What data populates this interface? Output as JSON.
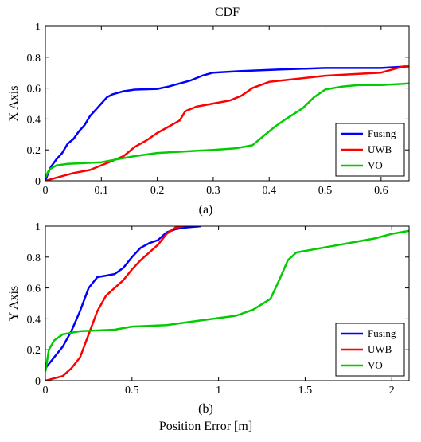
{
  "chart_data": [
    {
      "type": "line",
      "title": "CDF",
      "caption": "(a)",
      "xlabel": "",
      "ylabel": "X Axis",
      "xlim": [
        0,
        0.65
      ],
      "ylim": [
        0,
        1
      ],
      "xticks": [
        "0",
        "0.1",
        "0.2",
        "0.3",
        "0.4",
        "0.5",
        "0.6"
      ],
      "xtick_values": [
        0,
        0.1,
        0.2,
        0.3,
        0.4,
        0.5,
        0.6
      ],
      "yticks": [
        "0",
        "0.2",
        "0.4",
        "0.6",
        "0.8",
        "1"
      ],
      "ytick_values": [
        0,
        0.2,
        0.4,
        0.6,
        0.8,
        1
      ],
      "legend_position": "lower-right",
      "series": [
        {
          "name": "Fusing",
          "color": "#0000ff",
          "points": [
            [
              0,
              0
            ],
            [
              0.005,
              0.05
            ],
            [
              0.01,
              0.09
            ],
            [
              0.02,
              0.14
            ],
            [
              0.03,
              0.18
            ],
            [
              0.04,
              0.24
            ],
            [
              0.05,
              0.27
            ],
            [
              0.06,
              0.32
            ],
            [
              0.07,
              0.36
            ],
            [
              0.08,
              0.42
            ],
            [
              0.09,
              0.46
            ],
            [
              0.1,
              0.5
            ],
            [
              0.11,
              0.54
            ],
            [
              0.12,
              0.56
            ],
            [
              0.13,
              0.57
            ],
            [
              0.14,
              0.58
            ],
            [
              0.16,
              0.59
            ],
            [
              0.2,
              0.595
            ],
            [
              0.22,
              0.61
            ],
            [
              0.24,
              0.63
            ],
            [
              0.26,
              0.65
            ],
            [
              0.28,
              0.68
            ],
            [
              0.3,
              0.7
            ],
            [
              0.35,
              0.71
            ],
            [
              0.42,
              0.72
            ],
            [
              0.5,
              0.73
            ],
            [
              0.6,
              0.73
            ],
            [
              0.65,
              0.74
            ]
          ]
        },
        {
          "name": "UWB",
          "color": "#ff0000",
          "points": [
            [
              0,
              0
            ],
            [
              0.02,
              0.02
            ],
            [
              0.05,
              0.05
            ],
            [
              0.08,
              0.07
            ],
            [
              0.1,
              0.1
            ],
            [
              0.12,
              0.13
            ],
            [
              0.14,
              0.16
            ],
            [
              0.16,
              0.22
            ],
            [
              0.18,
              0.26
            ],
            [
              0.2,
              0.31
            ],
            [
              0.22,
              0.35
            ],
            [
              0.24,
              0.39
            ],
            [
              0.25,
              0.45
            ],
            [
              0.27,
              0.48
            ],
            [
              0.3,
              0.5
            ],
            [
              0.33,
              0.52
            ],
            [
              0.35,
              0.55
            ],
            [
              0.37,
              0.6
            ],
            [
              0.4,
              0.64
            ],
            [
              0.45,
              0.66
            ],
            [
              0.5,
              0.68
            ],
            [
              0.55,
              0.69
            ],
            [
              0.6,
              0.7
            ],
            [
              0.64,
              0.74
            ],
            [
              0.65,
              0.74
            ]
          ]
        },
        {
          "name": "VO",
          "color": "#00cc00",
          "points": [
            [
              0,
              0.02
            ],
            [
              0.005,
              0.06
            ],
            [
              0.01,
              0.08
            ],
            [
              0.02,
              0.1
            ],
            [
              0.04,
              0.11
            ],
            [
              0.1,
              0.12
            ],
            [
              0.13,
              0.14
            ],
            [
              0.16,
              0.16
            ],
            [
              0.2,
              0.18
            ],
            [
              0.25,
              0.19
            ],
            [
              0.3,
              0.2
            ],
            [
              0.34,
              0.21
            ],
            [
              0.37,
              0.23
            ],
            [
              0.39,
              0.29
            ],
            [
              0.41,
              0.35
            ],
            [
              0.43,
              0.4
            ],
            [
              0.46,
              0.47
            ],
            [
              0.48,
              0.54
            ],
            [
              0.5,
              0.59
            ],
            [
              0.53,
              0.61
            ],
            [
              0.56,
              0.62
            ],
            [
              0.6,
              0.62
            ],
            [
              0.65,
              0.63
            ]
          ]
        }
      ]
    },
    {
      "type": "line",
      "title": "",
      "caption": "(b)",
      "xlabel": "Position Error [m]",
      "ylabel": "Y Axis",
      "xlim": [
        0,
        2.1
      ],
      "ylim": [
        0,
        1
      ],
      "xticks": [
        "0",
        "0.5",
        "1",
        "1.5",
        "2"
      ],
      "xtick_values": [
        0,
        0.5,
        1,
        1.5,
        2
      ],
      "yticks": [
        "0",
        "0.2",
        "0.4",
        "0.6",
        "0.8",
        "1"
      ],
      "ytick_values": [
        0,
        0.2,
        0.4,
        0.6,
        0.8,
        1
      ],
      "legend_position": "lower-right",
      "series": [
        {
          "name": "Fusing",
          "color": "#0000ff",
          "points": [
            [
              0,
              0.08
            ],
            [
              0.05,
              0.15
            ],
            [
              0.1,
              0.22
            ],
            [
              0.15,
              0.32
            ],
            [
              0.2,
              0.45
            ],
            [
              0.25,
              0.6
            ],
            [
              0.3,
              0.67
            ],
            [
              0.35,
              0.68
            ],
            [
              0.4,
              0.69
            ],
            [
              0.45,
              0.73
            ],
            [
              0.5,
              0.8
            ],
            [
              0.55,
              0.86
            ],
            [
              0.6,
              0.89
            ],
            [
              0.65,
              0.91
            ],
            [
              0.7,
              0.96
            ],
            [
              0.75,
              0.98
            ],
            [
              0.8,
              0.99
            ],
            [
              0.9,
              1.0
            ]
          ]
        },
        {
          "name": "UWB",
          "color": "#ff0000",
          "points": [
            [
              0,
              0
            ],
            [
              0.1,
              0.03
            ],
            [
              0.15,
              0.08
            ],
            [
              0.2,
              0.15
            ],
            [
              0.25,
              0.3
            ],
            [
              0.3,
              0.45
            ],
            [
              0.35,
              0.55
            ],
            [
              0.4,
              0.6
            ],
            [
              0.45,
              0.65
            ],
            [
              0.5,
              0.72
            ],
            [
              0.55,
              0.78
            ],
            [
              0.6,
              0.83
            ],
            [
              0.65,
              0.88
            ],
            [
              0.7,
              0.95
            ],
            [
              0.75,
              0.99
            ],
            [
              0.8,
              1.0
            ]
          ]
        },
        {
          "name": "VO",
          "color": "#00cc00",
          "points": [
            [
              0,
              0.06
            ],
            [
              0.02,
              0.2
            ],
            [
              0.05,
              0.26
            ],
            [
              0.1,
              0.3
            ],
            [
              0.2,
              0.32
            ],
            [
              0.4,
              0.33
            ],
            [
              0.5,
              0.35
            ],
            [
              0.7,
              0.36
            ],
            [
              0.9,
              0.39
            ],
            [
              1.1,
              0.42
            ],
            [
              1.2,
              0.46
            ],
            [
              1.3,
              0.53
            ],
            [
              1.35,
              0.65
            ],
            [
              1.4,
              0.78
            ],
            [
              1.45,
              0.83
            ],
            [
              1.6,
              0.86
            ],
            [
              1.7,
              0.88
            ],
            [
              1.8,
              0.9
            ],
            [
              1.9,
              0.92
            ],
            [
              2.0,
              0.95
            ],
            [
              2.1,
              0.97
            ]
          ]
        }
      ]
    }
  ]
}
